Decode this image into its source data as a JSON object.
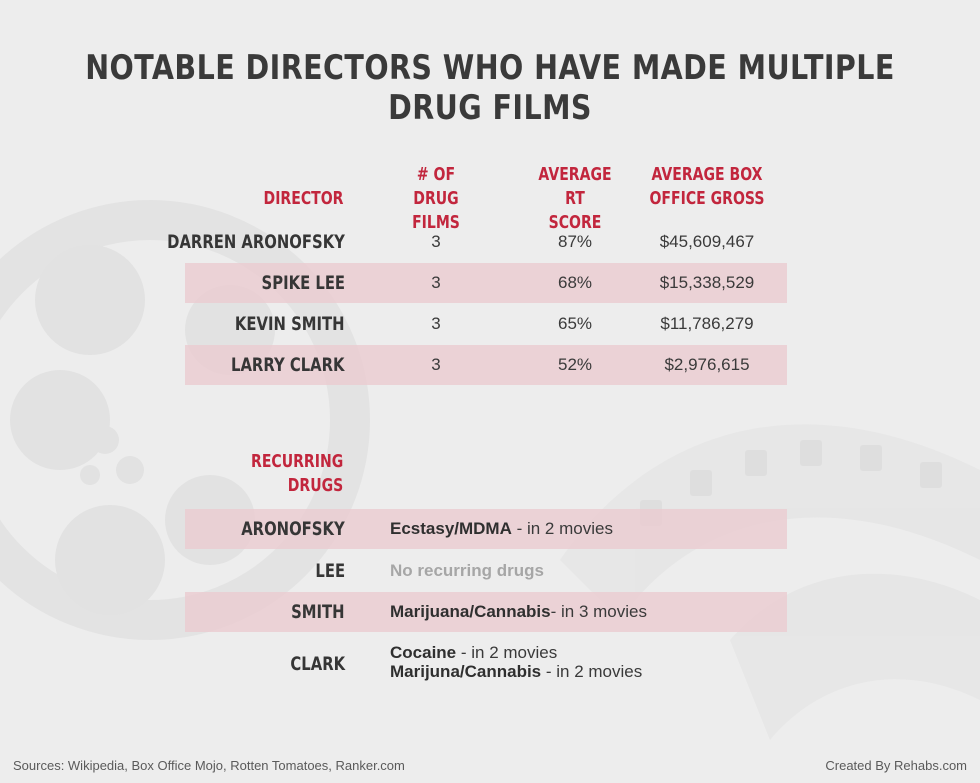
{
  "title": "NOTABLE DIRECTORS WHO HAVE MADE MULTIPLE DRUG FILMS",
  "stats_table": {
    "headers": {
      "director": "DIRECTOR",
      "films_line1": "# OF DRUG",
      "films_line2": "FILMS",
      "rt_line1": "AVERAGE RT",
      "rt_line2": "SCORE",
      "gross_line1": "AVERAGE BOX",
      "gross_line2": "OFFICE GROSS"
    },
    "rows": [
      {
        "director": "DARREN ARONOFSKY",
        "films": "3",
        "rt": "87%",
        "gross": "$45,609,467"
      },
      {
        "director": "SPIKE LEE",
        "films": "3",
        "rt": "68%",
        "gross": "$15,338,529"
      },
      {
        "director": "KEVIN SMITH",
        "films": "3",
        "rt": "65%",
        "gross": "$11,786,279"
      },
      {
        "director": "LARRY CLARK",
        "films": "3",
        "rt": "52%",
        "gross": "$2,976,615"
      }
    ]
  },
  "drugs_table": {
    "header_line1": "RECURRING",
    "header_line2": "DRUGS",
    "rows": [
      {
        "director": "ARONOFSKY",
        "drug": "Ecstasy/MDMA",
        "detail": " - in 2 movies"
      },
      {
        "director": "LEE",
        "none": "No recurring drugs"
      },
      {
        "director": "SMITH",
        "drug": "Marijuana/Cannabis",
        "detail": "- in 3 movies"
      },
      {
        "director": "CLARK",
        "drug": "Cocaine",
        "detail": " - in 2 movies",
        "drug2": "Marijuna/Cannabis",
        "detail2": " - in 2 movies"
      }
    ]
  },
  "footer": {
    "sources": "Sources: Wikipedia, Box Office Mojo, Rotten Tomatoes, Ranker.com",
    "credit": "Created By Rehabs.com"
  },
  "colors": {
    "accent": "#c2263d",
    "row_shade": "#eacbd0",
    "text": "#363636",
    "background": "#ededed"
  }
}
